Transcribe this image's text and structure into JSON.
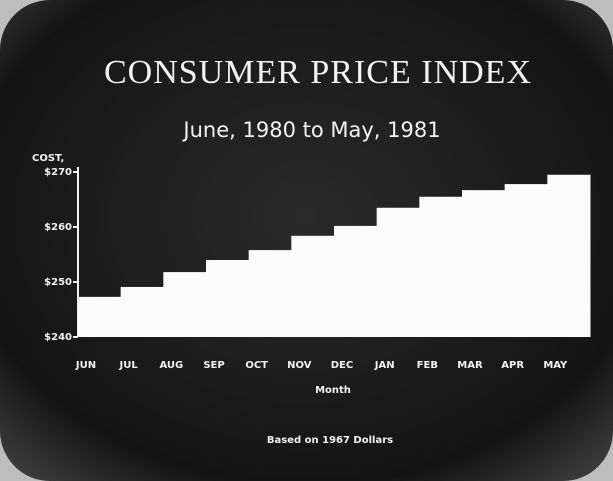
{
  "chart_data": {
    "type": "bar",
    "title": "CONSUMER PRICE INDEX",
    "subtitle": "June, 1980 to May, 1981",
    "y_label": "COST,",
    "x_label": "Month",
    "footnote": "Based on 1967 Dollars",
    "categories": [
      "JUN",
      "JUL",
      "AUG",
      "SEP",
      "OCT",
      "NOV",
      "DEC",
      "JAN",
      "FEB",
      "MAR",
      "APR",
      "MAY"
    ],
    "values": [
      247.3,
      249.1,
      251.8,
      254.0,
      255.8,
      258.4,
      260.2,
      263.5,
      265.5,
      266.7,
      267.8,
      269.5
    ],
    "color": "#fbfbfb",
    "ylim": [
      240,
      270
    ],
    "yticks": [
      {
        "value": 240,
        "label": "$240"
      },
      {
        "value": 250,
        "label": "$250"
      },
      {
        "value": 260,
        "label": "$260"
      },
      {
        "value": 270,
        "label": "$270"
      }
    ]
  }
}
